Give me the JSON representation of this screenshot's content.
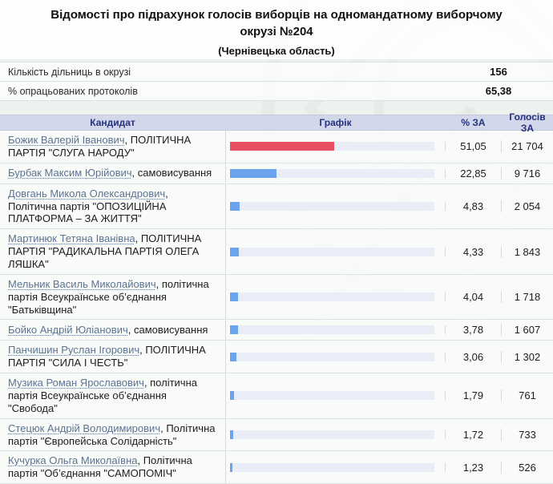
{
  "page": {
    "title": "Відомості про підрахунок голосів виборців на одномандатному виборчому окрузі №204",
    "subtitle": "(Чернівецька область)"
  },
  "info": {
    "rows": [
      {
        "label": "Кількість дільниць в окрузі",
        "value": "156"
      },
      {
        "label": "% опрацьованих протоколів",
        "value": "65,38"
      }
    ]
  },
  "table": {
    "headers": {
      "candidate": "Кандидат",
      "chart": "Графік",
      "percent": "% ЗА",
      "votes": "Голосів ЗА"
    },
    "rows": [
      {
        "name": "Божик Валерій Іванович",
        "party": ", ПОЛІТИЧНА ПАРТІЯ \"СЛУГА НАРОДУ\"",
        "percent": "51,05",
        "votes": "21 704",
        "bar_color": "#e94f62"
      },
      {
        "name": "Бурбак Максим Юрійович",
        "party": ", самовисування",
        "percent": "22,85",
        "votes": "9 716",
        "bar_color": "#6ba3ec"
      },
      {
        "name": "Довгань Микола Олександрович",
        "party": ", Політична партія \"ОПОЗИЦІЙНА ПЛАТФОРМА – ЗА ЖИТТЯ\"",
        "percent": "4,83",
        "votes": "2 054",
        "bar_color": "#6ba3ec"
      },
      {
        "name": "Мартинюк Тетяна Іванівна",
        "party": ", ПОЛІТИЧНА ПАРТІЯ \"РАДИКАЛЬНА ПАРТІЯ ОЛЕГА ЛЯШКА\"",
        "percent": "4,33",
        "votes": "1 843",
        "bar_color": "#6ba3ec"
      },
      {
        "name": "Мельник Василь Миколайович",
        "party": ", політична партія Всеукраїнське об’єднання \"Батьківщина\"",
        "percent": "4,04",
        "votes": "1 718",
        "bar_color": "#6ba3ec"
      },
      {
        "name": "Бойко Андрій Юліанович",
        "party": ", самовисування",
        "percent": "3,78",
        "votes": "1 607",
        "bar_color": "#6ba3ec"
      },
      {
        "name": "Панчишин Руслан Ігорович",
        "party": ", ПОЛІТИЧНА ПАРТІЯ \"СИЛА І ЧЕСТЬ\"",
        "percent": "3,06",
        "votes": "1 302",
        "bar_color": "#6ba3ec"
      },
      {
        "name": "Музика Роман Ярославович",
        "party": ", політична партія Всеукраїнське об’єднання \"Свобода\"",
        "percent": "1,79",
        "votes": "761",
        "bar_color": "#6ba3ec"
      },
      {
        "name": "Стецюк Андрій Володимирович",
        "party": ", Політична партія \"Європейська Солідарність\"",
        "percent": "1,72",
        "votes": "733",
        "bar_color": "#6ba3ec"
      },
      {
        "name": "Кучурка Ольга Миколаївна",
        "party": ", Політична партія \"Об’єднання \"САМОПОМІЧ\"",
        "percent": "1,23",
        "votes": "526",
        "bar_color": "#6ba3ec"
      }
    ]
  },
  "colors": {
    "leader_bar": "#e94f62",
    "default_bar": "#6ba3ec",
    "bar_track": "#e9edf8",
    "header_bg": "#d2d8ea",
    "header_text": "#25317e",
    "link": "#5c7392"
  }
}
